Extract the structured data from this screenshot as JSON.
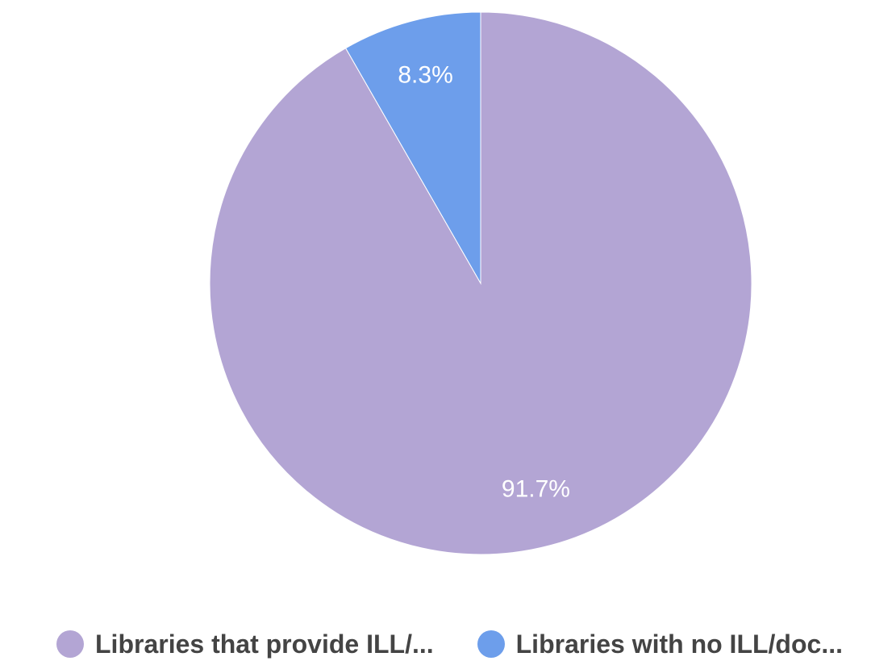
{
  "chart_data": {
    "type": "pie",
    "title": "",
    "slices": [
      {
        "label": "Libraries that provide ILL/...",
        "value": 91.7,
        "value_label": "91.7%",
        "color": "#b3a5d4"
      },
      {
        "label": "Libraries with no ILL/doc...",
        "value": 8.3,
        "value_label": "8.3%",
        "color": "#6d9eeb"
      }
    ],
    "start_angle_deg": 0,
    "direction": "clockwise",
    "legend_position": "bottom"
  }
}
